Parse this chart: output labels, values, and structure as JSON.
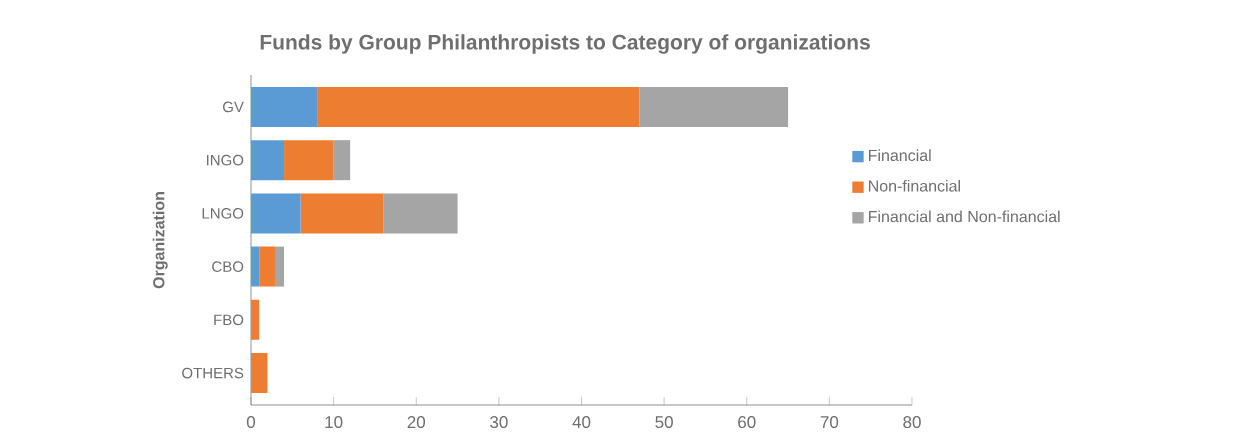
{
  "chart_data": {
    "type": "bar",
    "orientation": "horizontal",
    "stacked": true,
    "title": "Funds by Group Philanthropists to Category of organizations",
    "ylabel": "Organization",
    "categories": [
      "GV",
      "INGO",
      "LNGO",
      "CBO",
      "FBO",
      "OTHERS"
    ],
    "series": [
      {
        "name": "Financial",
        "color": "#5b9bd5",
        "values": [
          8,
          4,
          6,
          1,
          0,
          0
        ]
      },
      {
        "name": "Non-financial",
        "color": "#ed7d31",
        "values": [
          39,
          6,
          10,
          2,
          1,
          2
        ]
      },
      {
        "name": "Financial and Non-financial",
        "color": "#a5a5a5",
        "values": [
          18,
          2,
          9,
          1,
          0,
          0
        ]
      }
    ],
    "xlim": [
      0,
      80
    ],
    "xticks": [
      0,
      10,
      20,
      30,
      40,
      50,
      60,
      70,
      80
    ],
    "legend": "right"
  }
}
